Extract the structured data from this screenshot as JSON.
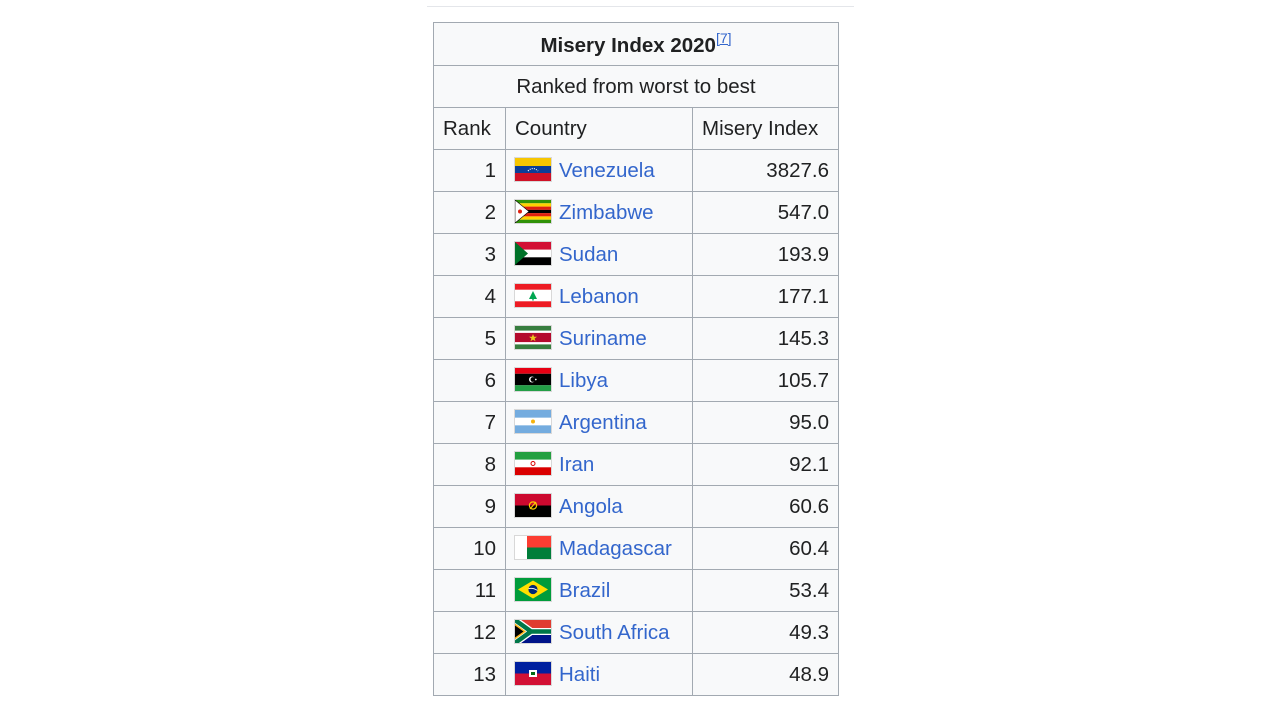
{
  "table": {
    "title": "Misery Index 2020",
    "ref": "[7]",
    "subtitle": "Ranked from worst to best",
    "headers": {
      "rank": "Rank",
      "country": "Country",
      "value": "Misery Index"
    },
    "rows": [
      {
        "rank": "1",
        "country": "Venezuela",
        "value": "3827.6",
        "flag": "venezuela-flag-icon"
      },
      {
        "rank": "2",
        "country": "Zimbabwe",
        "value": "547.0",
        "flag": "zimbabwe-flag-icon"
      },
      {
        "rank": "3",
        "country": "Sudan",
        "value": "193.9",
        "flag": "sudan-flag-icon"
      },
      {
        "rank": "4",
        "country": "Lebanon",
        "value": "177.1",
        "flag": "lebanon-flag-icon"
      },
      {
        "rank": "5",
        "country": "Suriname",
        "value": "145.3",
        "flag": "suriname-flag-icon"
      },
      {
        "rank": "6",
        "country": "Libya",
        "value": "105.7",
        "flag": "libya-flag-icon"
      },
      {
        "rank": "7",
        "country": "Argentina",
        "value": "95.0",
        "flag": "argentina-flag-icon"
      },
      {
        "rank": "8",
        "country": "Iran",
        "value": "92.1",
        "flag": "iran-flag-icon"
      },
      {
        "rank": "9",
        "country": "Angola",
        "value": "60.6",
        "flag": "angola-flag-icon"
      },
      {
        "rank": "10",
        "country": "Madagascar",
        "value": "60.4",
        "flag": "madagascar-flag-icon"
      },
      {
        "rank": "11",
        "country": "Brazil",
        "value": "53.4",
        "flag": "brazil-flag-icon"
      },
      {
        "rank": "12",
        "country": "South Africa",
        "value": "49.3",
        "flag": "south-africa-flag-icon"
      },
      {
        "rank": "13",
        "country": "Haiti",
        "value": "48.9",
        "flag": "haiti-flag-icon"
      }
    ]
  },
  "colors": {
    "link": "#3366cc",
    "border": "#a2a9b1",
    "table_bg": "#f8f9fa"
  }
}
